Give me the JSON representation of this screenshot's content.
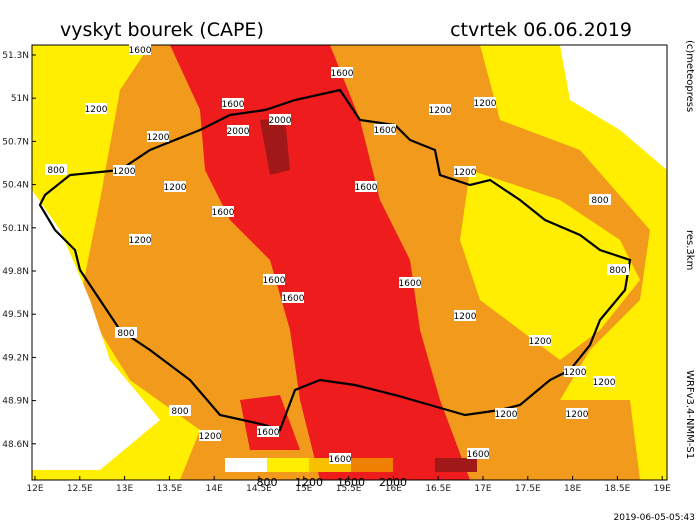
{
  "header": {
    "title": "vyskyt bourek (CAPE)",
    "date": "ctvrtek 06.06.2019"
  },
  "map": {
    "lat_labels": [
      "51.3N",
      "51N",
      "50.7N",
      "50.4N",
      "50.1N",
      "49.8N",
      "49.5N",
      "49.2N",
      "48.9N",
      "48.6N"
    ],
    "lon_labels": [
      "12E",
      "12.5E",
      "13E",
      "13.5E",
      "14E",
      "14.5E",
      "15E",
      "15.5E",
      "16E",
      "16.5E",
      "17E",
      "17.5E",
      "18E",
      "18.5E",
      "19E"
    ],
    "contour_labels": [
      "1600",
      "1600",
      "1200",
      "1200",
      "1600",
      "2000",
      "2000",
      "1200",
      "1200",
      "1200",
      "1200",
      "800",
      "1600",
      "1600",
      "1200",
      "800",
      "1600",
      "1200",
      "1600",
      "1600",
      "1600",
      "800",
      "1200",
      "800",
      "1200",
      "1200",
      "1200",
      "800",
      "1200",
      "1200",
      "1200",
      "1600",
      "1600",
      "1600"
    ]
  },
  "legend": {
    "labels": [
      "800",
      "1200",
      "1600",
      "2000"
    ]
  },
  "side": {
    "copyright": "(c)meteopress",
    "resolution": "res.3km",
    "model": "WRFv3.4-NMM-S1"
  },
  "footer": {
    "timestamp": "2019-06-05-05:43"
  }
}
